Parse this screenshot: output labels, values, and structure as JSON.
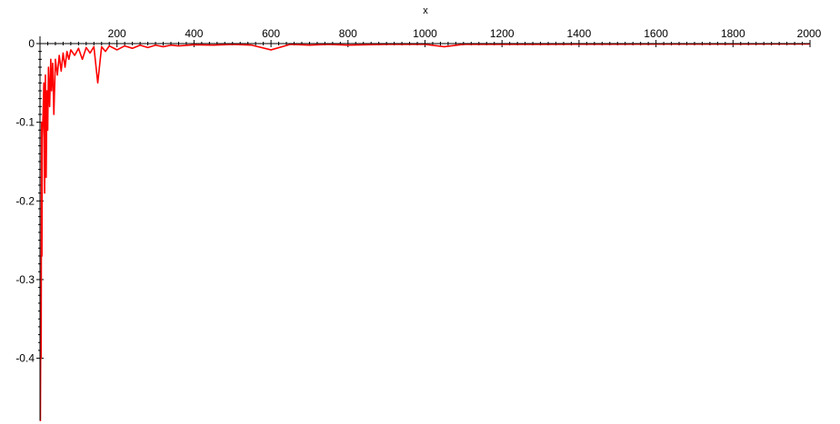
{
  "chart_data": {
    "type": "line",
    "title": "",
    "xlabel": "x",
    "ylabel": "",
    "xlim": [
      0,
      2000
    ],
    "ylim": [
      -0.48,
      0.005
    ],
    "x_ticks": [
      200,
      400,
      600,
      800,
      1000,
      1200,
      1400,
      1600,
      1800,
      2000
    ],
    "x_tick_labels": [
      "200",
      "400",
      "600",
      "800",
      "1000",
      "1200",
      "1400",
      "1600",
      "1800",
      "2000"
    ],
    "y_ticks": [
      0,
      -0.1,
      -0.2,
      -0.3,
      -0.4
    ],
    "y_tick_labels": [
      "0",
      "-0.1",
      "-0.2",
      "-0.3",
      "-0.4"
    ],
    "grid": false,
    "legend": "none",
    "x_axis_position": "top (at y = 0)",
    "series": [
      {
        "color": "#ff0000",
        "x": [
          1,
          2,
          3,
          4,
          5,
          6,
          8,
          10,
          12,
          14,
          16,
          18,
          20,
          22,
          25,
          28,
          30,
          33,
          36,
          40,
          45,
          50,
          55,
          60,
          65,
          70,
          75,
          80,
          90,
          100,
          110,
          120,
          130,
          140,
          150,
          160,
          170,
          180,
          200,
          220,
          240,
          260,
          280,
          300,
          320,
          340,
          360,
          400,
          450,
          500,
          550,
          600,
          650,
          700,
          750,
          800,
          900,
          1000,
          1050,
          1100,
          1200,
          1300,
          1400,
          1500,
          1600,
          1700,
          1800,
          1900,
          2000
        ],
        "y": [
          -0.48,
          -0.35,
          -0.4,
          -0.1,
          -0.27,
          -0.12,
          -0.09,
          -0.05,
          -0.19,
          -0.04,
          -0.17,
          -0.06,
          -0.11,
          -0.03,
          -0.08,
          -0.02,
          -0.06,
          -0.025,
          -0.09,
          -0.02,
          -0.04,
          -0.015,
          -0.035,
          -0.012,
          -0.03,
          -0.01,
          -0.02,
          -0.008,
          -0.015,
          -0.006,
          -0.02,
          -0.005,
          -0.012,
          -0.004,
          -0.05,
          -0.004,
          -0.01,
          -0.003,
          -0.008,
          -0.003,
          -0.006,
          -0.002,
          -0.005,
          -0.002,
          -0.004,
          -0.002,
          -0.003,
          -0.0015,
          -0.002,
          -0.001,
          -0.002,
          -0.008,
          -0.001,
          -0.002,
          -0.001,
          -0.002,
          -0.001,
          -0.001,
          -0.004,
          -0.001,
          -0.001,
          -0.001,
          -0.0008,
          -0.0008,
          -0.0007,
          -0.0006,
          -0.0006,
          -0.0005,
          -0.0005
        ]
      }
    ]
  }
}
